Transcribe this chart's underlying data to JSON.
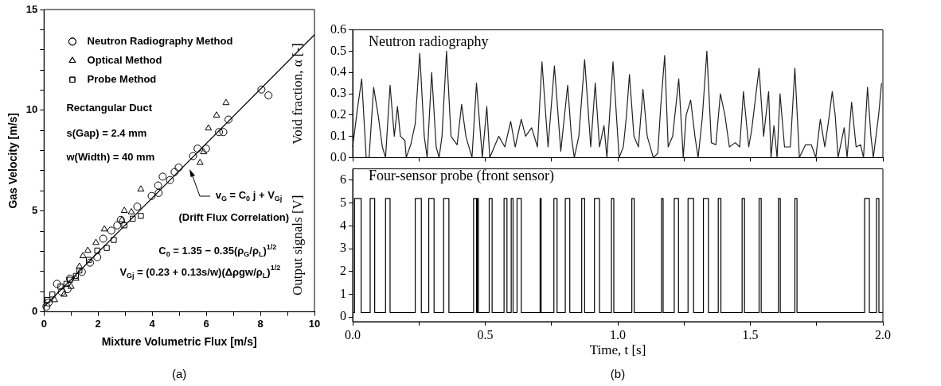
{
  "chart_data": [
    {
      "type": "scatter",
      "xlabel": "Mixture Volumetric Flux [m/s]",
      "ylabel": "Gas Velocity [m/s]",
      "xlim": [
        0,
        10
      ],
      "ylim": [
        0,
        15
      ],
      "xticks": [
        0,
        {
          "value": 1,
          "label": null
        },
        2,
        {
          "value": 3,
          "label": null
        },
        4,
        {
          "value": 5,
          "label": null
        },
        6,
        {
          "value": 7,
          "label": null
        },
        8,
        {
          "value": 9,
          "label": null
        },
        10
      ],
      "yticks": [
        0,
        {
          "value": 1,
          "label": null
        },
        {
          "value": 2,
          "label": null
        },
        {
          "value": 3,
          "label": null
        },
        {
          "value": 4,
          "label": null
        },
        5,
        {
          "value": 6,
          "label": null
        },
        {
          "value": 7,
          "label": null
        },
        {
          "value": 8,
          "label": null
        },
        {
          "value": 9,
          "label": null
        },
        10,
        {
          "value": 11,
          "label": null
        },
        {
          "value": 12,
          "label": null
        },
        {
          "value": 13,
          "label": null
        },
        {
          "value": 14,
          "label": null
        },
        15
      ],
      "legend": "top left",
      "series": [
        {
          "name": "Neutron Radiography Method",
          "type": "scatter",
          "marker": "circle",
          "color": "#000000",
          "x": [
            0.09,
            0.17,
            0.48,
            0.66,
            0.87,
            0.96,
            1.4,
            1.7,
            1.97,
            2.19,
            2.49,
            2.71,
            2.84,
            3.45,
            3.98,
            4.22,
            4.24,
            4.39,
            4.66,
            4.83,
            4.98,
            5.51,
            5.68,
            5.99,
            6.47,
            6.63,
            6.82,
            8.04,
            8.3
          ],
          "values": [
            0.26,
            0.46,
            1.39,
            0.99,
            1.12,
            1.65,
            1.98,
            2.44,
            2.71,
            3.63,
            4.03,
            4.29,
            4.56,
            5.22,
            5.75,
            6.27,
            5.9,
            6.71,
            6.54,
            6.94,
            7.16,
            7.73,
            8.1,
            8.1,
            8.92,
            8.92,
            9.54,
            11.03,
            10.74
          ]
        },
        {
          "name": "Optical Method",
          "type": "scatter",
          "marker": "triangle",
          "color": "#000000",
          "x": [
            0.39,
            0.74,
            1.0,
            1.18,
            1.31,
            1.44,
            1.62,
            1.92,
            2.23,
            2.88,
            2.97,
            3.23,
            3.58,
            5.77,
            5.9,
            6.08,
            6.38,
            6.73
          ],
          "values": [
            0.59,
            0.86,
            1.25,
            1.65,
            2.25,
            2.77,
            3.04,
            3.43,
            4.1,
            4.56,
            5.02,
            4.95,
            6.08,
            7.4,
            7.93,
            9.11,
            9.75,
            10.37
          ]
        },
        {
          "name": "Probe Method",
          "type": "scatter",
          "marker": "square",
          "color": "#000000",
          "x": [
            0.13,
            0.31,
            0.61,
            0.83,
            0.96,
            1.18,
            1.31,
            1.66,
            1.97,
            2.32,
            2.58,
            2.97,
            3.28,
            3.58
          ],
          "values": [
            0.59,
            0.86,
            1.25,
            1.39,
            1.59,
            1.78,
            2.05,
            2.58,
            3.04,
            3.17,
            3.57,
            4.29,
            4.62,
            4.76
          ]
        },
        {
          "type": "line",
          "marker": "none",
          "color": "#000000",
          "x": [
            0,
            10
          ],
          "values": [
            0.25,
            13.75
          ]
        }
      ],
      "annotations": [
        "Rectangular Duct",
        "s(Gap) = 2.4 mm",
        "w(Width) = 40 mm",
        "v$_{G}$ = C$_{0}$ j + V$_{Gj}$",
        "(Drift Flux Correlation)",
        "C$_{0}$ = 1.35 − 0.35(ρ$_{G}$/ρ$_{L}$)$^{1/2}$",
        "V$_{Gj}$ = (0.23 + 0.13s/w)(Δρgw/ρ$_{L}$)$^{1/2}$",
        "(a)"
      ]
    },
    {
      "type": "line",
      "ylabel": "Void fraction, α [-]",
      "xlim": [
        0,
        2
      ],
      "ylim": [
        0,
        0.6
      ],
      "tick_labels": "y",
      "xticks": [
        {
          "value": 0,
          "label": null
        },
        {
          "value": 0.25,
          "label": null
        },
        {
          "value": 0.5,
          "label": null
        },
        {
          "value": 0.75,
          "label": null
        },
        {
          "value": 1,
          "label": null
        },
        {
          "value": 1.25,
          "label": null
        },
        {
          "value": 1.5,
          "label": null
        },
        {
          "value": 1.75,
          "label": null
        },
        {
          "value": 2,
          "label": null
        }
      ],
      "yticks": [
        {
          "value": 0,
          "label": "0.0"
        },
        0.1,
        0.2,
        0.3,
        0.4,
        0.5,
        0.6
      ],
      "series": [
        {
          "color": "#222222",
          "x": [
            0,
            0.017,
            0.034,
            0.051,
            0.062,
            0.079,
            0.096,
            0.112,
            0.124,
            0.141,
            0.157,
            0.169,
            0.18,
            0.197,
            0.202,
            0.219,
            0.236,
            0.253,
            0.27,
            0.281,
            0.298,
            0.315,
            0.326,
            0.337,
            0.354,
            0.371,
            0.394,
            0.411,
            0.427,
            0.45,
            0.467,
            0.489,
            0.506,
            0.517,
            0.534,
            0.551,
            0.574,
            0.596,
            0.613,
            0.636,
            0.652,
            0.675,
            0.697,
            0.714,
            0.737,
            0.761,
            0.785,
            0.811,
            0.825,
            0.836,
            0.853,
            0.875,
            0.898,
            0.915,
            0.931,
            0.948,
            0.959,
            0.982,
            1.005,
            1.021,
            1.033,
            1.044,
            1.061,
            1.078,
            1.095,
            1.111,
            1.134,
            1.151,
            1.162,
            1.177,
            1.19,
            1.207,
            1.23,
            1.247,
            1.258,
            1.275,
            1.291,
            1.303,
            1.319,
            1.336,
            1.353,
            1.37,
            1.387,
            1.404,
            1.421,
            1.443,
            1.46,
            1.474,
            1.494,
            1.505,
            1.533,
            1.55,
            1.569,
            1.578,
            1.589,
            1.601,
            1.612,
            1.629,
            1.651,
            1.668,
            1.685,
            1.708,
            1.73,
            1.747,
            1.764,
            1.781,
            1.796,
            1.809,
            1.82,
            1.831,
            1.854,
            1.865,
            1.882,
            1.899,
            1.916,
            1.927,
            1.942,
            1.955,
            1.964,
            1.984,
            1.995
          ],
          "values": [
            0.05,
            0.22,
            0.37,
            0.0,
            0.0,
            0.33,
            0.2,
            0.05,
            0.0,
            0.34,
            0.1,
            0.24,
            0.1,
            0.08,
            0.0,
            0.06,
            0.16,
            0.49,
            0.1,
            0.0,
            0.4,
            0.05,
            0.0,
            0.1,
            0.5,
            0.1,
            0.06,
            0.25,
            0.1,
            0.0,
            0.35,
            0.0,
            0.24,
            0.0,
            0.05,
            0.1,
            0.05,
            0.17,
            0.05,
            0.18,
            0.1,
            0.14,
            0.05,
            0.45,
            0.05,
            0.43,
            0.03,
            0.34,
            0.1,
            0.0,
            0.1,
            0.46,
            0.05,
            0.35,
            0.05,
            0.15,
            0.0,
            0.45,
            0.0,
            0.05,
            0.2,
            0.39,
            0.1,
            0.05,
            0.32,
            0.1,
            0.0,
            0.02,
            0.24,
            0.48,
            0.05,
            0.1,
            0.37,
            0.0,
            0.2,
            0.27,
            0.1,
            0.0,
            0.19,
            0.5,
            0.07,
            0.06,
            0.3,
            0.2,
            0.05,
            0.07,
            0.05,
            0.31,
            0.05,
            0.13,
            0.42,
            0.1,
            0.31,
            0.0,
            0.15,
            0.0,
            0.3,
            0.05,
            0.05,
            0.42,
            0.0,
            0.06,
            0.06,
            0.0,
            0.18,
            0.05,
            0.18,
            0.31,
            0.2,
            0.0,
            0.14,
            0.0,
            0.26,
            0.05,
            0.06,
            0.0,
            0.33,
            0.1,
            0.0,
            0.2,
            0.35
          ]
        }
      ],
      "annotations": [
        "Neutron radiography"
      ]
    },
    {
      "type": "step",
      "xlabel": "Time, t [s]",
      "ylabel": "Output signals [V]",
      "xlim": [
        0,
        2
      ],
      "ylim": [
        -0.2,
        6.5
      ],
      "xticks": [
        {
          "value": 0,
          "label": "0.0"
        },
        {
          "value": 0.25,
          "label": null
        },
        0.5,
        {
          "value": 0.75,
          "label": null
        },
        {
          "value": 1,
          "label": "1.0"
        },
        {
          "value": 1.25,
          "label": null
        },
        1.5,
        {
          "value": 1.75,
          "label": null
        },
        {
          "value": 2,
          "label": "2.0"
        }
      ],
      "yticks": [
        0,
        1,
        2,
        3,
        4,
        5,
        6
      ],
      "series": [
        {
          "color": "#000000",
          "x": [
            0,
            0.007,
            0.032,
            0.066,
            0.083,
            0.124,
            0.141,
            0.236,
            0.259,
            0.287,
            0.307,
            0.343,
            0.363,
            0.456,
            0.467,
            0.47,
            0.474,
            0.515,
            0.526,
            0.571,
            0.582,
            0.598,
            0.605,
            0.62,
            0.636,
            0.707,
            0.711,
            0.759,
            0.771,
            0.802,
            0.819,
            0.864,
            0.875,
            0.912,
            0.931,
            0.976,
            0.985,
            1.053,
            1.062,
            1.165,
            1.171,
            1.213,
            1.229,
            1.265,
            1.286,
            1.323,
            1.342,
            1.379,
            1.389,
            1.469,
            1.478,
            1.533,
            1.541,
            1.606,
            1.613,
            1.668,
            1.676,
            1.931,
            1.949,
            1.976,
            1.985,
            2
          ],
          "values": [
            0.2,
            5.2,
            0.2,
            5.2,
            0.2,
            5.2,
            0.2,
            5.2,
            0.2,
            5.2,
            0.2,
            5.2,
            0.2,
            5.2,
            0.2,
            5.2,
            0.2,
            5.2,
            0.2,
            5.2,
            0.2,
            5.2,
            0.2,
            5.2,
            0.2,
            5.2,
            0.2,
            5.2,
            0.2,
            5.2,
            0.2,
            5.2,
            0.2,
            5.2,
            0.2,
            5.2,
            0.2,
            5.2,
            0.2,
            5.2,
            0.2,
            5.2,
            0.2,
            5.2,
            0.2,
            5.2,
            0.2,
            5.2,
            0.2,
            5.2,
            0.2,
            5.2,
            0.2,
            5.2,
            0.2,
            5.2,
            0.2,
            5.2,
            0.2,
            5.2,
            0.2,
            0.2
          ]
        }
      ],
      "annotations": [
        "Four-sensor probe (front sensor)",
        "(b)"
      ]
    }
  ]
}
